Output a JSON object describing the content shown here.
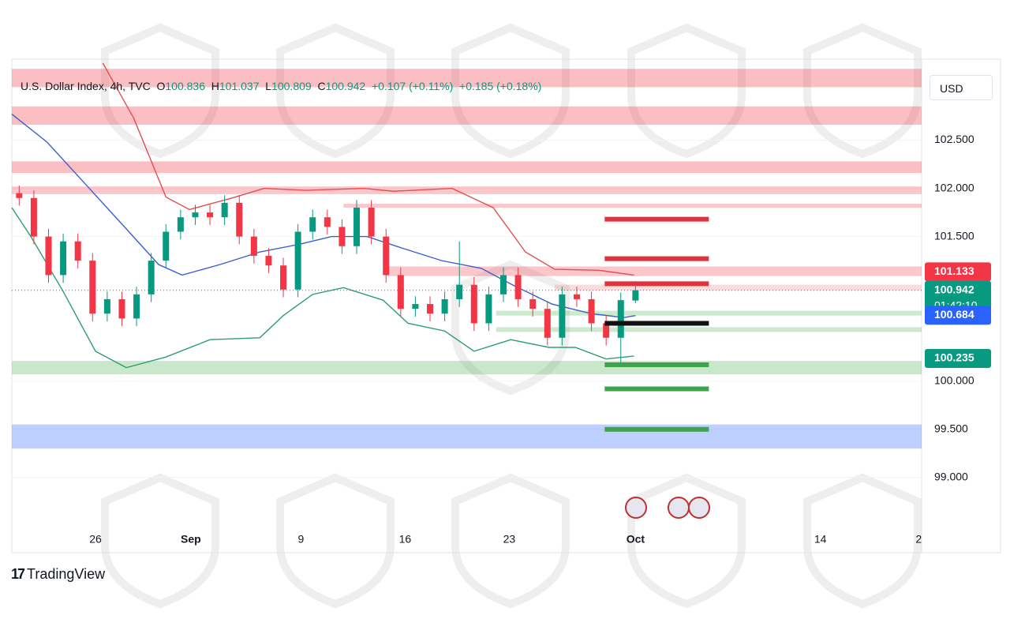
{
  "header": {
    "symbol": "U.S. Dollar Index, 4h, TVC",
    "labels": [
      "O",
      "H",
      "L",
      "C"
    ],
    "change": "+0.107 (+0.11%)",
    "change2": "+0.185 (+0.18%)"
  },
  "currency": "USD",
  "brand": "TradingView",
  "chart_data": {
    "type": "candlestick",
    "x": [
      0.5,
      1.5,
      2.5,
      3.5,
      4.5,
      5.5,
      6.5,
      7.5,
      8.5,
      9.5,
      10.5,
      11.5,
      12.5,
      13.5,
      14.5,
      15.5,
      16.5,
      17.5,
      18.5,
      19.5,
      20.5,
      21.5,
      22.5,
      23.5,
      24.5,
      25.5,
      26.5,
      27.5,
      28.5,
      29.5,
      30.5,
      31.5,
      32.5,
      33.5,
      34.5,
      35.5,
      36.5,
      37.5,
      38.5,
      39.5,
      40.5,
      41.5,
      42.5
    ],
    "open": [
      101.95,
      101.9,
      101.5,
      101.1,
      101.45,
      101.25,
      100.7,
      100.85,
      100.65,
      100.9,
      101.25,
      101.55,
      101.7,
      101.75,
      101.7,
      101.85,
      101.5,
      101.3,
      101.2,
      100.95,
      101.55,
      101.7,
      101.6,
      101.4,
      101.8,
      101.5,
      101.1,
      100.75,
      100.8,
      100.7,
      100.85,
      101.0,
      100.6,
      100.9,
      101.1,
      100.85,
      100.75,
      100.45,
      100.9,
      100.85,
      100.6,
      100.45,
      100.836
    ],
    "high": [
      102.03,
      101.98,
      101.58,
      101.53,
      101.53,
      101.33,
      100.93,
      100.93,
      100.98,
      101.33,
      101.63,
      101.78,
      101.83,
      101.83,
      101.93,
      101.93,
      101.58,
      101.38,
      101.28,
      101.63,
      101.78,
      101.78,
      101.68,
      101.88,
      101.88,
      101.58,
      101.18,
      100.88,
      100.88,
      100.93,
      101.45,
      101.08,
      100.98,
      101.18,
      101.18,
      100.93,
      100.83,
      100.98,
      100.98,
      100.93,
      100.68,
      100.92,
      101.037
    ],
    "low": [
      101.82,
      101.42,
      101.02,
      101.02,
      101.17,
      100.62,
      100.62,
      100.57,
      100.57,
      100.82,
      101.17,
      101.47,
      101.62,
      101.62,
      101.62,
      101.42,
      101.22,
      101.12,
      100.87,
      100.87,
      101.47,
      101.52,
      101.32,
      101.32,
      101.42,
      101.02,
      100.67,
      100.67,
      100.62,
      100.62,
      100.77,
      100.52,
      100.52,
      100.82,
      100.77,
      100.67,
      100.37,
      100.37,
      100.77,
      100.52,
      100.37,
      100.18,
      100.809
    ],
    "close": [
      101.9,
      101.5,
      101.1,
      101.45,
      101.25,
      100.7,
      100.85,
      100.65,
      100.9,
      101.25,
      101.55,
      101.7,
      101.75,
      101.7,
      101.85,
      101.5,
      101.3,
      101.2,
      100.95,
      101.55,
      101.7,
      101.6,
      101.4,
      101.8,
      101.5,
      101.1,
      100.75,
      100.8,
      100.7,
      100.85,
      101.0,
      100.6,
      100.9,
      101.1,
      100.85,
      100.75,
      100.45,
      100.9,
      100.85,
      100.6,
      100.45,
      100.84,
      100.942
    ],
    "up_color": "#089981",
    "down_color": "#f23645",
    "overlays": [
      {
        "color": "#e05050",
        "x": [
          6.2,
          8.3,
          10.5,
          12.1,
          15,
          17.2,
          20,
          24,
          26,
          30,
          32.8,
          35,
          37,
          40,
          42.4
        ],
        "values": [
          103.3,
          102.73,
          101.91,
          101.78,
          101.9,
          102.0,
          101.98,
          102.0,
          101.97,
          102.0,
          101.8,
          101.34,
          101.16,
          101.15,
          101.1
        ]
      },
      {
        "color": "#2e9e6e",
        "x": [
          0,
          1.3,
          3.5,
          5.7,
          7.8,
          10.5,
          13.5,
          16.9,
          18.5,
          20.5,
          22.6,
          25.3,
          27,
          29.5,
          31.5,
          34,
          36.6,
          38.4,
          40.5,
          42.4
        ],
        "values": [
          101.8,
          101.5,
          100.93,
          100.31,
          100.14,
          100.25,
          100.43,
          100.45,
          100.68,
          100.9,
          100.97,
          100.84,
          100.6,
          100.52,
          100.31,
          100.43,
          100.35,
          100.35,
          100.23,
          100.26
        ]
      },
      {
        "color": "#3a5fcd",
        "x": [
          0,
          2.4,
          5.1,
          7.8,
          10,
          11.6,
          14.2,
          16.9,
          19.6,
          21.8,
          24.2,
          26.6,
          29.3,
          32,
          34.1,
          36.8,
          39.5,
          41.7,
          42.5
        ],
        "values": [
          102.77,
          102.48,
          102.03,
          101.58,
          101.21,
          101.1,
          101.21,
          101.34,
          101.42,
          101.5,
          101.5,
          101.38,
          101.25,
          101.17,
          101.0,
          100.8,
          100.7,
          100.66,
          100.68
        ]
      }
    ],
    "zones": [
      {
        "from": 103.05,
        "to": 103.24,
        "color": "rgba(242,54,69,0.32)"
      },
      {
        "from": 102.66,
        "to": 102.85,
        "color": "rgba(242,54,69,0.32)"
      },
      {
        "from": 102.16,
        "to": 102.28,
        "color": "rgba(242,54,69,0.32)"
      },
      {
        "from": 101.94,
        "to": 102.02,
        "color": "rgba(242,54,69,0.28)"
      },
      {
        "from": 101.8,
        "to": 101.84,
        "color": "rgba(242,54,69,0.28)",
        "x_from": 22.6
      },
      {
        "from": 101.09,
        "to": 101.19,
        "color": "rgba(242,54,69,0.28)",
        "x_from": 25.5
      },
      {
        "from": 100.94,
        "to": 101.0,
        "color": "rgba(242,54,69,0.18)",
        "x_from": 37
      },
      {
        "from": 100.68,
        "to": 100.73,
        "color": "rgba(76,175,80,0.28)",
        "x_from": 33
      },
      {
        "from": 100.51,
        "to": 100.56,
        "color": "rgba(76,175,80,0.28)",
        "x_from": 33
      },
      {
        "from": 100.07,
        "to": 100.21,
        "color": "rgba(76,175,80,0.3)"
      },
      {
        "from": 99.3,
        "to": 99.55,
        "color": "rgba(41,98,255,0.3)"
      }
    ],
    "levels_x": [
      40.4,
      47.5
    ],
    "levels": [
      {
        "value": 101.68,
        "color": "#e0323c"
      },
      {
        "value": 101.27,
        "color": "#e0323c"
      },
      {
        "value": 101.01,
        "color": "#e0323c"
      },
      {
        "value": 100.6,
        "color": "#111111"
      },
      {
        "value": 100.17,
        "color": "#3fa34d"
      },
      {
        "value": 99.92,
        "color": "#3fa34d"
      },
      {
        "value": 99.5,
        "color": "#3fa34d"
      }
    ],
    "price_labels": [
      {
        "value": 101.133,
        "color": "#f23645"
      },
      {
        "value": 100.942,
        "color": "#089981",
        "countdown": "01:42:10"
      },
      {
        "value": 100.684,
        "color": "#2962ff"
      },
      {
        "value": 100.235,
        "color": "#089981"
      }
    ],
    "xlim": [
      0,
      62
    ],
    "xticks": [
      {
        "value": 5.7,
        "label": "26"
      },
      {
        "value": 12.2,
        "label": "Sep"
      },
      {
        "value": 19.7,
        "label": "9"
      },
      {
        "value": 26.8,
        "label": "16"
      },
      {
        "value": 33.9,
        "label": "23"
      },
      {
        "value": 42.5,
        "label": "Oct"
      },
      {
        "value": 55.1,
        "label": "14"
      },
      {
        "value": 61.8,
        "label": "2"
      }
    ],
    "ylim": [
      98.22,
      103.34
    ],
    "yticks": [
      {
        "value": 99,
        "label": "99.000"
      },
      {
        "value": 99.5,
        "label": "99.500"
      },
      {
        "value": 100,
        "label": "100.000"
      },
      {
        "value": 101.5,
        "label": "101.500"
      },
      {
        "value": 102,
        "label": "102.000"
      },
      {
        "value": 102.5,
        "label": "102.500"
      }
    ],
    "grid": true
  }
}
